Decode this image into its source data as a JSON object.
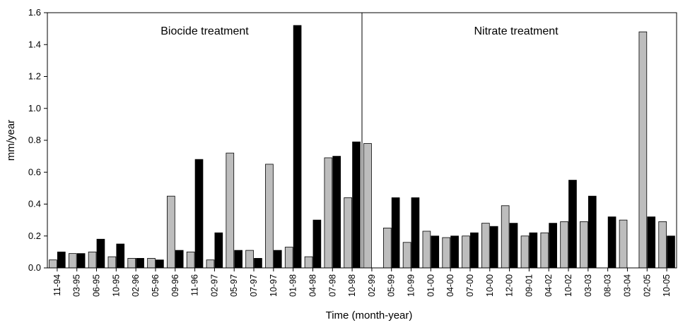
{
  "chart_data": {
    "type": "bar",
    "xlabel": "Time (month-year)",
    "ylabel": "mm/year",
    "ylim": [
      0,
      1.6
    ],
    "yticks": [
      "0.0",
      "0.2",
      "0.4",
      "0.6",
      "0.8",
      "1.0",
      "1.2",
      "1.4",
      "1.6"
    ],
    "grid": false,
    "legend": "none",
    "categories": [
      "11-94",
      "03-95",
      "06-95",
      "10-95",
      "02-96",
      "05-96",
      "09-96",
      "11-96",
      "02-97",
      "05-97",
      "07-97",
      "10-97",
      "01-98",
      "04-98",
      "07-98",
      "10-98",
      "02-99",
      "05-99",
      "10-99",
      "01-00",
      "04-00",
      "07-00",
      "10-00",
      "12-00",
      "09-01",
      "04-02",
      "10-02",
      "03-03",
      "08-03",
      "03-04",
      "02-05",
      "10-05"
    ],
    "series": [
      {
        "color": "#bdbdbd",
        "values": [
          0.05,
          0.09,
          0.1,
          0.07,
          0.06,
          0.06,
          0.45,
          0.1,
          0.05,
          0.72,
          0.11,
          0.65,
          0.13,
          0.07,
          0.69,
          0.44,
          0.78,
          0.25,
          0.16,
          0.23,
          0.19,
          0.2,
          0.28,
          0.39,
          0.2,
          0.22,
          0.29,
          0.29,
          0,
          0.3,
          1.48,
          0.29
        ]
      },
      {
        "color": "#000000",
        "values": [
          0.1,
          0.09,
          0.18,
          0.15,
          0.06,
          0.05,
          0.11,
          0.68,
          0.22,
          0.11,
          0.06,
          0.11,
          1.52,
          0.3,
          0.7,
          0.79,
          0,
          0.44,
          0.44,
          0.2,
          0.2,
          0.22,
          0.26,
          0.28,
          0.22,
          0.28,
          0.55,
          0.45,
          0.32,
          0,
          0.32,
          0.2
        ]
      }
    ],
    "divider_after_index": 15,
    "annotations": [
      {
        "text": "Biocide treatment"
      },
      {
        "text": "Nitrate treatment"
      }
    ]
  }
}
